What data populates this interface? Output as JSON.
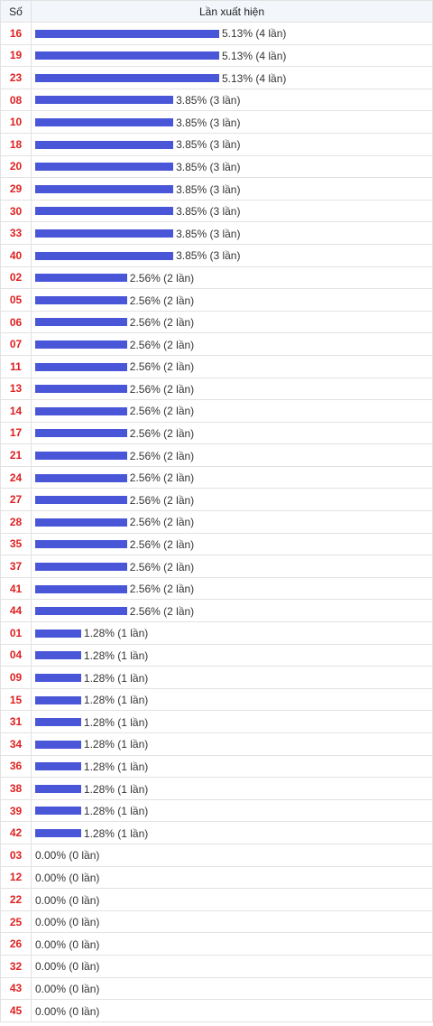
{
  "header": {
    "number_col": "Số",
    "freq_col": "Lần xuất hiện"
  },
  "chart_data": {
    "type": "bar",
    "orientation": "horizontal",
    "title": "",
    "xlabel": "Lần xuất hiện",
    "ylabel": "Số",
    "bar_color": "#4a56d8",
    "number_color": "#e02020",
    "rows": [
      {
        "num": "16",
        "pct": 5.13,
        "count": 4,
        "label": "5.13% (4 lần)"
      },
      {
        "num": "19",
        "pct": 5.13,
        "count": 4,
        "label": "5.13% (4 lần)"
      },
      {
        "num": "23",
        "pct": 5.13,
        "count": 4,
        "label": "5.13% (4 lần)"
      },
      {
        "num": "08",
        "pct": 3.85,
        "count": 3,
        "label": "3.85% (3 lần)"
      },
      {
        "num": "10",
        "pct": 3.85,
        "count": 3,
        "label": "3.85% (3 lần)"
      },
      {
        "num": "18",
        "pct": 3.85,
        "count": 3,
        "label": "3.85% (3 lần)"
      },
      {
        "num": "20",
        "pct": 3.85,
        "count": 3,
        "label": "3.85% (3 lần)"
      },
      {
        "num": "29",
        "pct": 3.85,
        "count": 3,
        "label": "3.85% (3 lần)"
      },
      {
        "num": "30",
        "pct": 3.85,
        "count": 3,
        "label": "3.85% (3 lần)"
      },
      {
        "num": "33",
        "pct": 3.85,
        "count": 3,
        "label": "3.85% (3 lần)"
      },
      {
        "num": "40",
        "pct": 3.85,
        "count": 3,
        "label": "3.85% (3 lần)"
      },
      {
        "num": "02",
        "pct": 2.56,
        "count": 2,
        "label": "2.56% (2 lần)"
      },
      {
        "num": "05",
        "pct": 2.56,
        "count": 2,
        "label": "2.56% (2 lần)"
      },
      {
        "num": "06",
        "pct": 2.56,
        "count": 2,
        "label": "2.56% (2 lần)"
      },
      {
        "num": "07",
        "pct": 2.56,
        "count": 2,
        "label": "2.56% (2 lần)"
      },
      {
        "num": "11",
        "pct": 2.56,
        "count": 2,
        "label": "2.56% (2 lần)"
      },
      {
        "num": "13",
        "pct": 2.56,
        "count": 2,
        "label": "2.56% (2 lần)"
      },
      {
        "num": "14",
        "pct": 2.56,
        "count": 2,
        "label": "2.56% (2 lần)"
      },
      {
        "num": "17",
        "pct": 2.56,
        "count": 2,
        "label": "2.56% (2 lần)"
      },
      {
        "num": "21",
        "pct": 2.56,
        "count": 2,
        "label": "2.56% (2 lần)"
      },
      {
        "num": "24",
        "pct": 2.56,
        "count": 2,
        "label": "2.56% (2 lần)"
      },
      {
        "num": "27",
        "pct": 2.56,
        "count": 2,
        "label": "2.56% (2 lần)"
      },
      {
        "num": "28",
        "pct": 2.56,
        "count": 2,
        "label": "2.56% (2 lần)"
      },
      {
        "num": "35",
        "pct": 2.56,
        "count": 2,
        "label": "2.56% (2 lần)"
      },
      {
        "num": "37",
        "pct": 2.56,
        "count": 2,
        "label": "2.56% (2 lần)"
      },
      {
        "num": "41",
        "pct": 2.56,
        "count": 2,
        "label": "2.56% (2 lần)"
      },
      {
        "num": "44",
        "pct": 2.56,
        "count": 2,
        "label": "2.56% (2 lần)"
      },
      {
        "num": "01",
        "pct": 1.28,
        "count": 1,
        "label": "1.28% (1 lần)"
      },
      {
        "num": "04",
        "pct": 1.28,
        "count": 1,
        "label": "1.28% (1 lần)"
      },
      {
        "num": "09",
        "pct": 1.28,
        "count": 1,
        "label": "1.28% (1 lần)"
      },
      {
        "num": "15",
        "pct": 1.28,
        "count": 1,
        "label": "1.28% (1 lần)"
      },
      {
        "num": "31",
        "pct": 1.28,
        "count": 1,
        "label": "1.28% (1 lần)"
      },
      {
        "num": "34",
        "pct": 1.28,
        "count": 1,
        "label": "1.28% (1 lần)"
      },
      {
        "num": "36",
        "pct": 1.28,
        "count": 1,
        "label": "1.28% (1 lần)"
      },
      {
        "num": "38",
        "pct": 1.28,
        "count": 1,
        "label": "1.28% (1 lần)"
      },
      {
        "num": "39",
        "pct": 1.28,
        "count": 1,
        "label": "1.28% (1 lần)"
      },
      {
        "num": "42",
        "pct": 1.28,
        "count": 1,
        "label": "1.28% (1 lần)"
      },
      {
        "num": "03",
        "pct": 0.0,
        "count": 0,
        "label": "0.00% (0 lần)"
      },
      {
        "num": "12",
        "pct": 0.0,
        "count": 0,
        "label": "0.00% (0 lần)"
      },
      {
        "num": "22",
        "pct": 0.0,
        "count": 0,
        "label": "0.00% (0 lần)"
      },
      {
        "num": "25",
        "pct": 0.0,
        "count": 0,
        "label": "0.00% (0 lần)"
      },
      {
        "num": "26",
        "pct": 0.0,
        "count": 0,
        "label": "0.00% (0 lần)"
      },
      {
        "num": "32",
        "pct": 0.0,
        "count": 0,
        "label": "0.00% (0 lần)"
      },
      {
        "num": "43",
        "pct": 0.0,
        "count": 0,
        "label": "0.00% (0 lần)"
      },
      {
        "num": "45",
        "pct": 0.0,
        "count": 0,
        "label": "0.00% (0 lần)"
      }
    ]
  }
}
